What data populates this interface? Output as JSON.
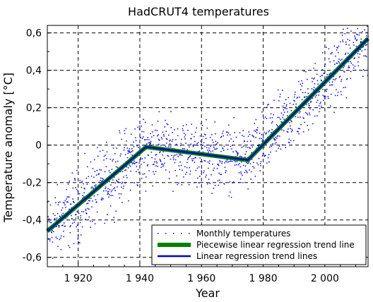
{
  "chart_data": {
    "type": "scatter",
    "title": "HadCRUT4 temperatures",
    "xlabel": "Year",
    "ylabel": "Temperature anomaly [°C]",
    "xlim": [
      1910,
      2014
    ],
    "ylim": [
      -0.65,
      0.64
    ],
    "xticks": [
      1920,
      1940,
      1960,
      1980,
      2000
    ],
    "xtick_labels": [
      "1 920",
      "1 940",
      "1 960",
      "1 980",
      "2 000"
    ],
    "yticks": [
      -0.6,
      -0.4,
      -0.2,
      0,
      0.2,
      0.4,
      0.6
    ],
    "ytick_labels": [
      "-0,6",
      "-0,4",
      "-0,2",
      "0",
      "0,2",
      "0,4",
      "0,6"
    ],
    "grid": true,
    "legend_position": "bottom-right",
    "series": [
      {
        "name": "Monthly temperatures",
        "kind": "scatter",
        "color": "#0000dd",
        "segments": [
          {
            "x": [
              1910,
              1942
            ],
            "y": [
              -0.46,
              -0.01
            ],
            "spread": 0.13
          },
          {
            "x": [
              1942,
              1975
            ],
            "y": [
              -0.01,
              -0.08
            ],
            "spread": 0.12
          },
          {
            "x": [
              1975,
              2014
            ],
            "y": [
              -0.08,
              0.57
            ],
            "spread": 0.12
          }
        ]
      },
      {
        "name": "Piecewise linear regression trend line",
        "kind": "line",
        "color": "#008000",
        "x": [
          1910,
          1942,
          1975,
          2014
        ],
        "y": [
          -0.46,
          -0.01,
          -0.08,
          0.57
        ]
      },
      {
        "name": "Linear regression trend lines",
        "kind": "line",
        "color": "#0000cc",
        "x": [
          1910,
          1942,
          1975,
          2014
        ],
        "y": [
          -0.46,
          -0.01,
          -0.08,
          0.57
        ]
      }
    ]
  }
}
